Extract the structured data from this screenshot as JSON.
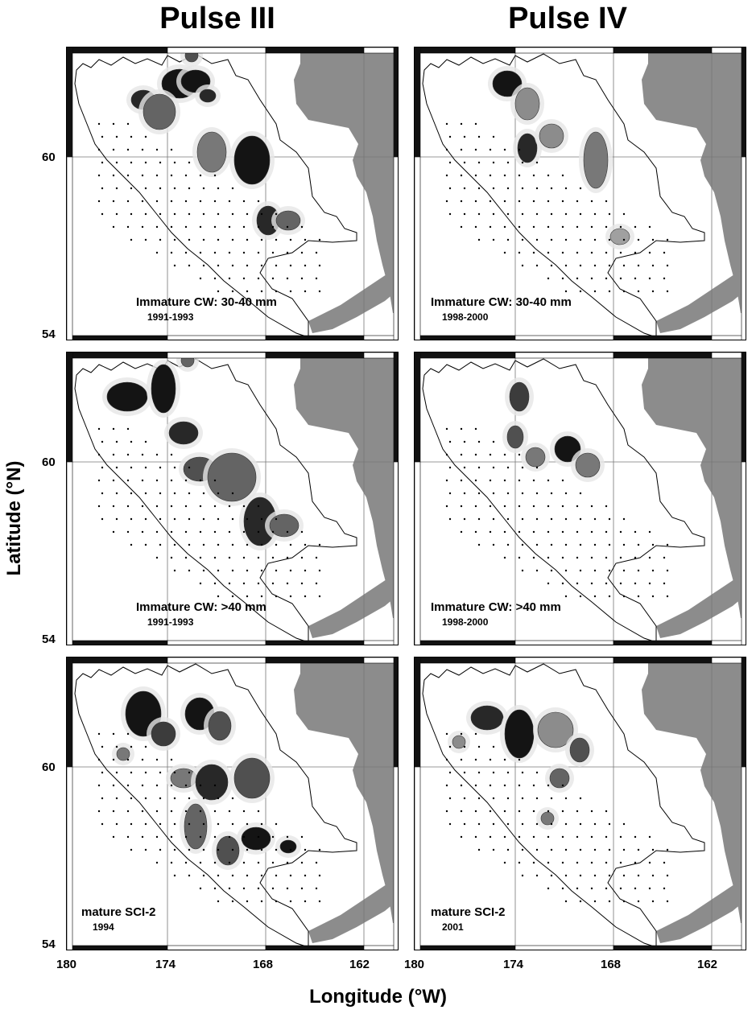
{
  "columns": [
    "Pulse III",
    "Pulse IV"
  ],
  "y_axis_label": "Latitude (°N)",
  "x_axis_label": "Longitude (°W)",
  "x_ticks": [
    "180",
    "174",
    "168",
    "162"
  ],
  "y_ticks": [
    "60",
    "54"
  ],
  "panels": [
    {
      "title": "Immature CW: 30-40 mm",
      "years": "1991-1993"
    },
    {
      "title": "Immature CW: 30-40 mm",
      "years": "1998-2000"
    },
    {
      "title": "Immature CW: >40 mm",
      "years": "1991-1993"
    },
    {
      "title": "Immature CW: >40 mm",
      "years": "1998-2000"
    },
    {
      "title": "mature SCI-2",
      "years": "1994"
    },
    {
      "title": "mature SCI-2",
      "years": "2001"
    }
  ],
  "colors": {
    "land": "#8c8c8c",
    "frame": "#111111",
    "density_high": "#141414",
    "density_low": "#d9d9d9"
  }
}
